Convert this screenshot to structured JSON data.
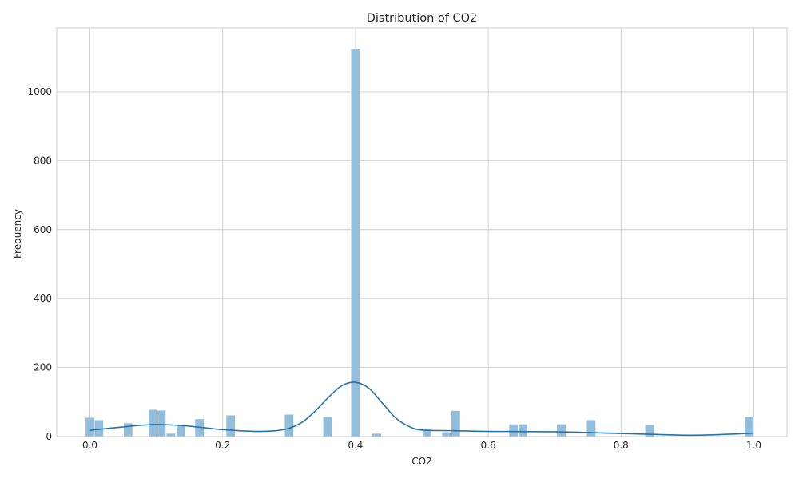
{
  "chart_data": {
    "type": "bar",
    "title": "Distribution of CO2",
    "xlabel": "CO2",
    "ylabel": "Frequency",
    "xlim": [
      -0.05,
      1.05
    ],
    "ylim": [
      0,
      1185
    ],
    "xticks": [
      0.0,
      0.2,
      0.4,
      0.6,
      0.8,
      1.0
    ],
    "xtick_labels": [
      "0.0",
      "0.2",
      "0.4",
      "0.6",
      "0.8",
      "1.0"
    ],
    "yticks": [
      0,
      200,
      400,
      600,
      800,
      1000
    ],
    "ytick_labels": [
      "0",
      "200",
      "400",
      "600",
      "800",
      "1000"
    ],
    "grid": true,
    "bin_width": 0.0135,
    "histogram": [
      {
        "x": 0.0,
        "count": 55
      },
      {
        "x": 0.0135,
        "count": 48
      },
      {
        "x": 0.0575,
        "count": 39
      },
      {
        "x": 0.095,
        "count": 78
      },
      {
        "x": 0.1075,
        "count": 76
      },
      {
        "x": 0.122,
        "count": 9
      },
      {
        "x": 0.137,
        "count": 33
      },
      {
        "x": 0.165,
        "count": 51
      },
      {
        "x": 0.212,
        "count": 62
      },
      {
        "x": 0.3,
        "count": 64
      },
      {
        "x": 0.358,
        "count": 57
      },
      {
        "x": 0.4,
        "count": 1125
      },
      {
        "x": 0.432,
        "count": 9
      },
      {
        "x": 0.508,
        "count": 24
      },
      {
        "x": 0.537,
        "count": 13
      },
      {
        "x": 0.551,
        "count": 75
      },
      {
        "x": 0.638,
        "count": 36
      },
      {
        "x": 0.652,
        "count": 36
      },
      {
        "x": 0.71,
        "count": 36
      },
      {
        "x": 0.755,
        "count": 48
      },
      {
        "x": 0.843,
        "count": 34
      },
      {
        "x": 0.993,
        "count": 57
      }
    ],
    "kde": {
      "x": [
        0.0,
        0.05,
        0.1,
        0.15,
        0.2,
        0.25,
        0.28,
        0.3,
        0.32,
        0.34,
        0.36,
        0.38,
        0.4,
        0.42,
        0.44,
        0.46,
        0.48,
        0.5,
        0.55,
        0.6,
        0.7,
        0.8,
        0.9,
        0.95,
        1.0
      ],
      "y": [
        18,
        28,
        35,
        30,
        20,
        15,
        17,
        24,
        42,
        75,
        115,
        148,
        157,
        140,
        98,
        55,
        30,
        19,
        17,
        15,
        14,
        9,
        4,
        6,
        10
      ]
    },
    "colors": {
      "bar": "#92bddb",
      "line": "#2474ad",
      "grid": "#cccccc"
    }
  }
}
